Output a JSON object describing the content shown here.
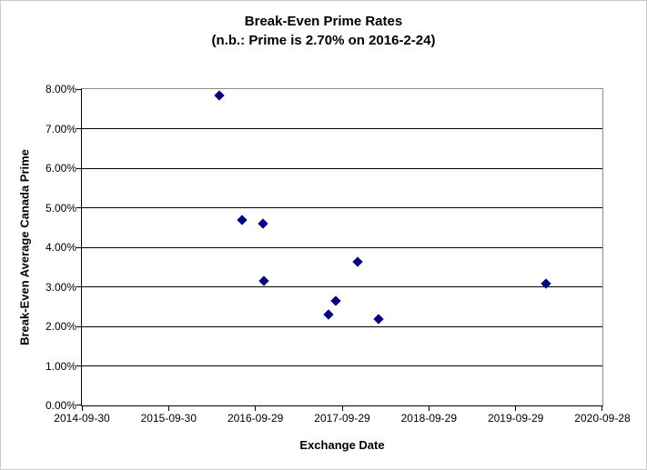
{
  "page": {
    "background": "#ffffff",
    "frame_border_color": "#c9c9c9"
  },
  "chart_data": {
    "type": "scatter",
    "title": "Break-Even Prime Rates",
    "subtitle": "(n.b.: Prime is 2.70% on 2016-2-24)",
    "xlabel": "Exchange Date",
    "ylabel": "Break-Even Average Canada Prime",
    "grid": true,
    "legend": false,
    "marker": "diamond",
    "marker_color": "#000080",
    "gridline_color": "#000000",
    "plot_border_color": "#8c8c8c",
    "axis_color": "#000000",
    "x_axis": {
      "type": "date",
      "min": "2014-09-30",
      "max": "2020-09-28",
      "tick_labels": [
        "2014-09-30",
        "2015-09-30",
        "2016-09-29",
        "2017-09-29",
        "2018-09-29",
        "2019-09-29",
        "2020-09-28"
      ]
    },
    "y_axis": {
      "min": 0,
      "max": 8,
      "step": 1,
      "tick_labels": [
        "0.00%",
        "1.00%",
        "2.00%",
        "3.00%",
        "4.00%",
        "5.00%",
        "6.00%",
        "7.00%",
        "8.00%"
      ]
    },
    "series": [
      {
        "name": "Break-Even Average Canada Prime",
        "points": [
          {
            "x": "2016-05-02",
            "y": 7.83
          },
          {
            "x": "2016-08-02",
            "y": 4.7
          },
          {
            "x": "2016-10-29",
            "y": 4.6
          },
          {
            "x": "2016-11-03",
            "y": 3.16
          },
          {
            "x": "2017-08-02",
            "y": 2.29
          },
          {
            "x": "2017-09-03",
            "y": 2.64
          },
          {
            "x": "2017-12-05",
            "y": 3.64
          },
          {
            "x": "2018-03-01",
            "y": 2.19
          },
          {
            "x": "2020-02-05",
            "y": 3.08
          }
        ]
      }
    ]
  }
}
